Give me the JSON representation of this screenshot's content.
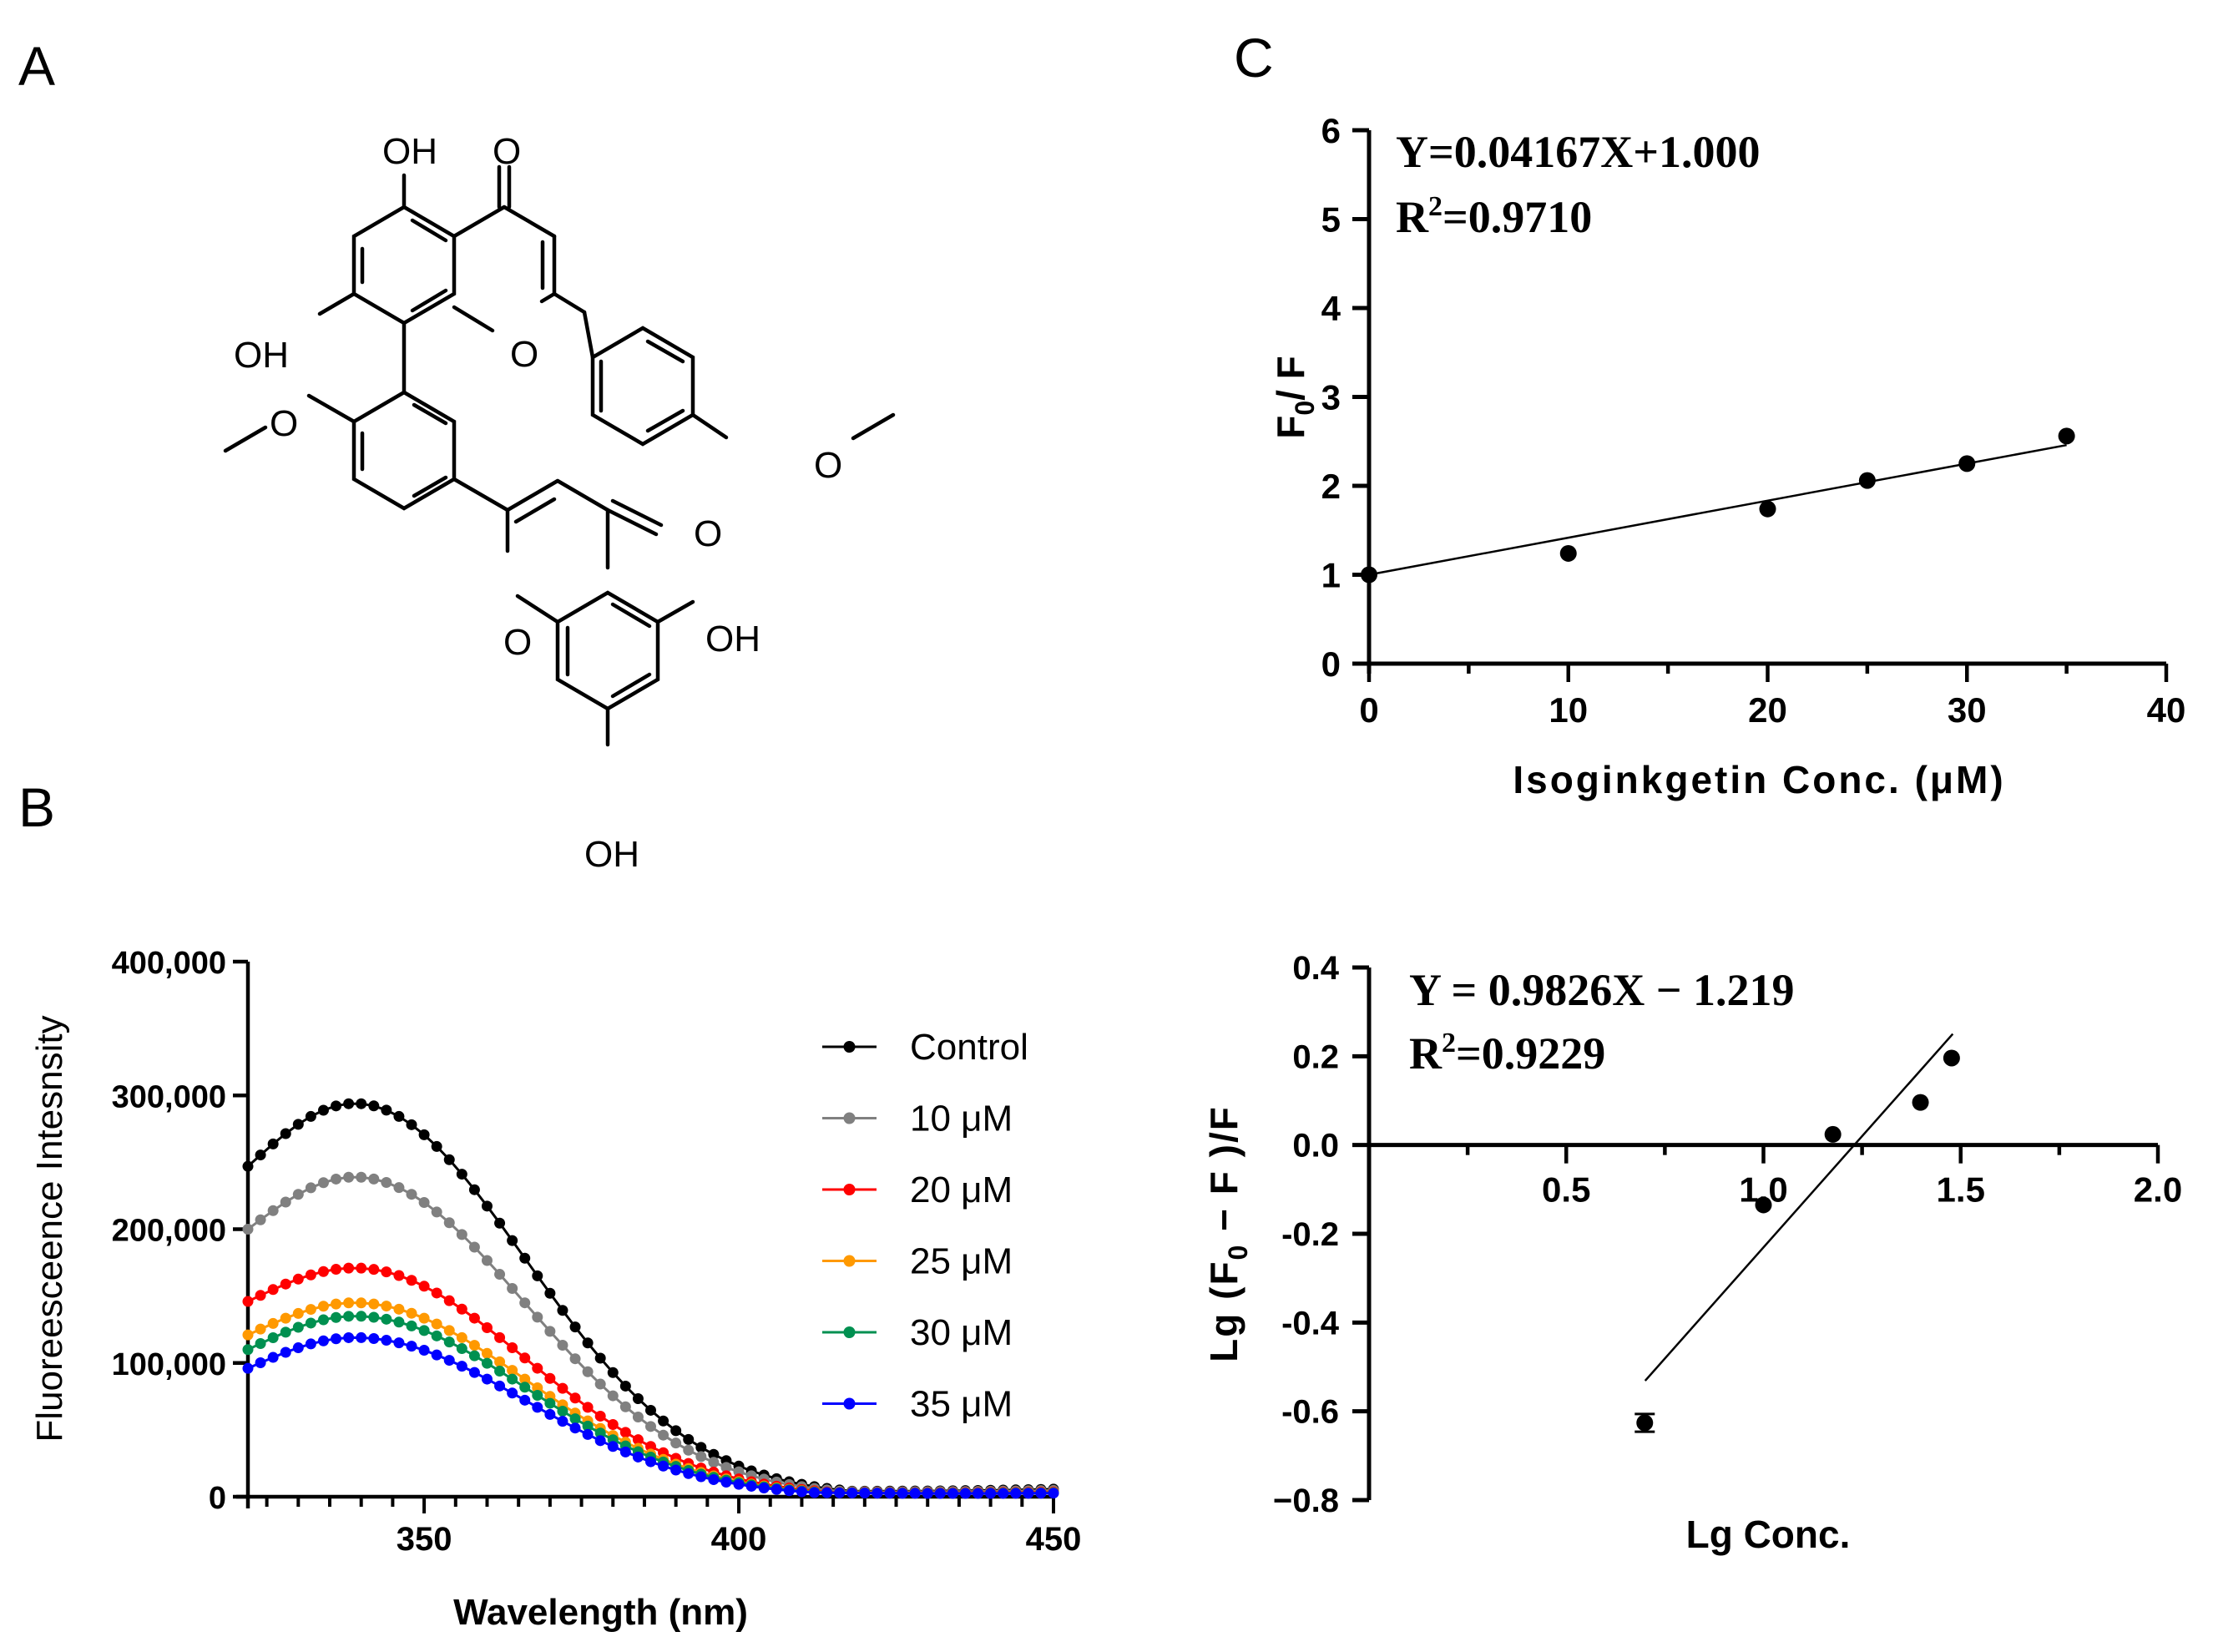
{
  "panel_labels": {
    "a": "A",
    "b": "B",
    "c": "C"
  },
  "structure": {
    "labels": {
      "oh_top": "OH",
      "o_top_ketone": "O",
      "oh_left": "OH",
      "o_ring_top": "O",
      "o_methoxy_left": "O",
      "o_methoxy_right": "O",
      "o_bottom_ketone": "O",
      "o_ring_bottom": "O",
      "oh_right": "OH",
      "oh_bottom": "OH"
    }
  },
  "chart_data": [
    {
      "id": "B",
      "type": "scatter",
      "title": "",
      "xlabel": "Wavelength (nm)",
      "ylabel": "Fluoreesceence Intesnsity",
      "xlim": [
        322,
        450
      ],
      "ylim": [
        0,
        400000
      ],
      "x_ticks": [
        350,
        400,
        450
      ],
      "y_ticks": [
        0,
        100000,
        200000,
        300000,
        400000
      ],
      "y_tick_labels": [
        "0",
        "100,000",
        "200,000",
        "300,000",
        "400,000"
      ],
      "x_start": 322,
      "x_step": 2,
      "n_points": 65,
      "legend_position": "right",
      "series": [
        {
          "name": "Control",
          "color": "#000000",
          "peak": 294000,
          "start": 247000
        },
        {
          "name": "10 μM",
          "color": "#808080",
          "peak": 239000,
          "start": 200000
        },
        {
          "name": "20 μM",
          "color": "#ff0000",
          "peak": 171000,
          "start": 146000
        },
        {
          "name": "25 μM",
          "color": "#ff9900",
          "peak": 145000,
          "start": 121000
        },
        {
          "name": "30 μM",
          "color": "#009050",
          "peak": 135000,
          "start": 110000
        },
        {
          "name": "35 μM",
          "color": "#0000ff",
          "peak": 119000,
          "start": 96000
        }
      ],
      "peak_wavelength": 339,
      "tail_value_at_450": 5000
    },
    {
      "id": "C",
      "type": "scatter",
      "title": "",
      "xlabel": "Isoginkgetin Conc. (μM)",
      "ylabel": "F0/F",
      "ylabel_main": "F",
      "ylabel_sub": "0",
      "ylabel_rest": "/ F",
      "xlim": [
        0,
        40
      ],
      "ylim": [
        0,
        6
      ],
      "x_ticks": [
        0,
        10,
        20,
        30,
        40
      ],
      "y_ticks": [
        0,
        1,
        2,
        3,
        4,
        5,
        6
      ],
      "x": [
        0,
        10,
        20,
        25,
        30,
        35
      ],
      "y": [
        1.0,
        1.24,
        1.74,
        2.06,
        2.25,
        2.56
      ],
      "fit": {
        "slope": 0.04167,
        "intercept": 1.0,
        "x_range": [
          0,
          35
        ]
      },
      "equation": "Y=0.04167X+1.000",
      "r2_label": "R",
      "r2_sup": "2",
      "r2_value": "=0.9710"
    },
    {
      "id": "D",
      "type": "scatter",
      "title": "",
      "xlabel": "Lg Conc.",
      "ylabel": "Lg (F0 − F )/F",
      "ylabel_a": "Lg (F",
      "ylabel_sub": "0",
      "ylabel_b": " − F )/F",
      "xlim": [
        0,
        2.0
      ],
      "ylim": [
        -0.8,
        0.4
      ],
      "x_ticks": [
        0.5,
        1.0,
        1.5,
        2.0
      ],
      "x_tick_labels": [
        "0.5",
        "1.0",
        "1.5",
        "2.0"
      ],
      "y_ticks": [
        -0.8,
        -0.6,
        -0.4,
        -0.2,
        0.0,
        0.2,
        0.4
      ],
      "y_tick_labels": [
        "−0.8",
        "-0.6",
        "-0.4",
        "-0.2",
        "0.0",
        "0.2",
        "0.4"
      ],
      "x": [
        0.699,
        1.0,
        1.176,
        1.398,
        1.477
      ],
      "y": [
        -0.626,
        -0.135,
        0.024,
        0.096,
        0.196
      ],
      "error": [
        0.02,
        0.0,
        0.0,
        0.0,
        0.0
      ],
      "fit": {
        "slope": 0.9826,
        "intercept": -1.219,
        "x_range": [
          0.7,
          1.48
        ]
      },
      "equation": "Y = 0.9826X − 1.219",
      "r2_label": "R",
      "r2_sup": "2",
      "r2_value": "=0.9229"
    }
  ]
}
